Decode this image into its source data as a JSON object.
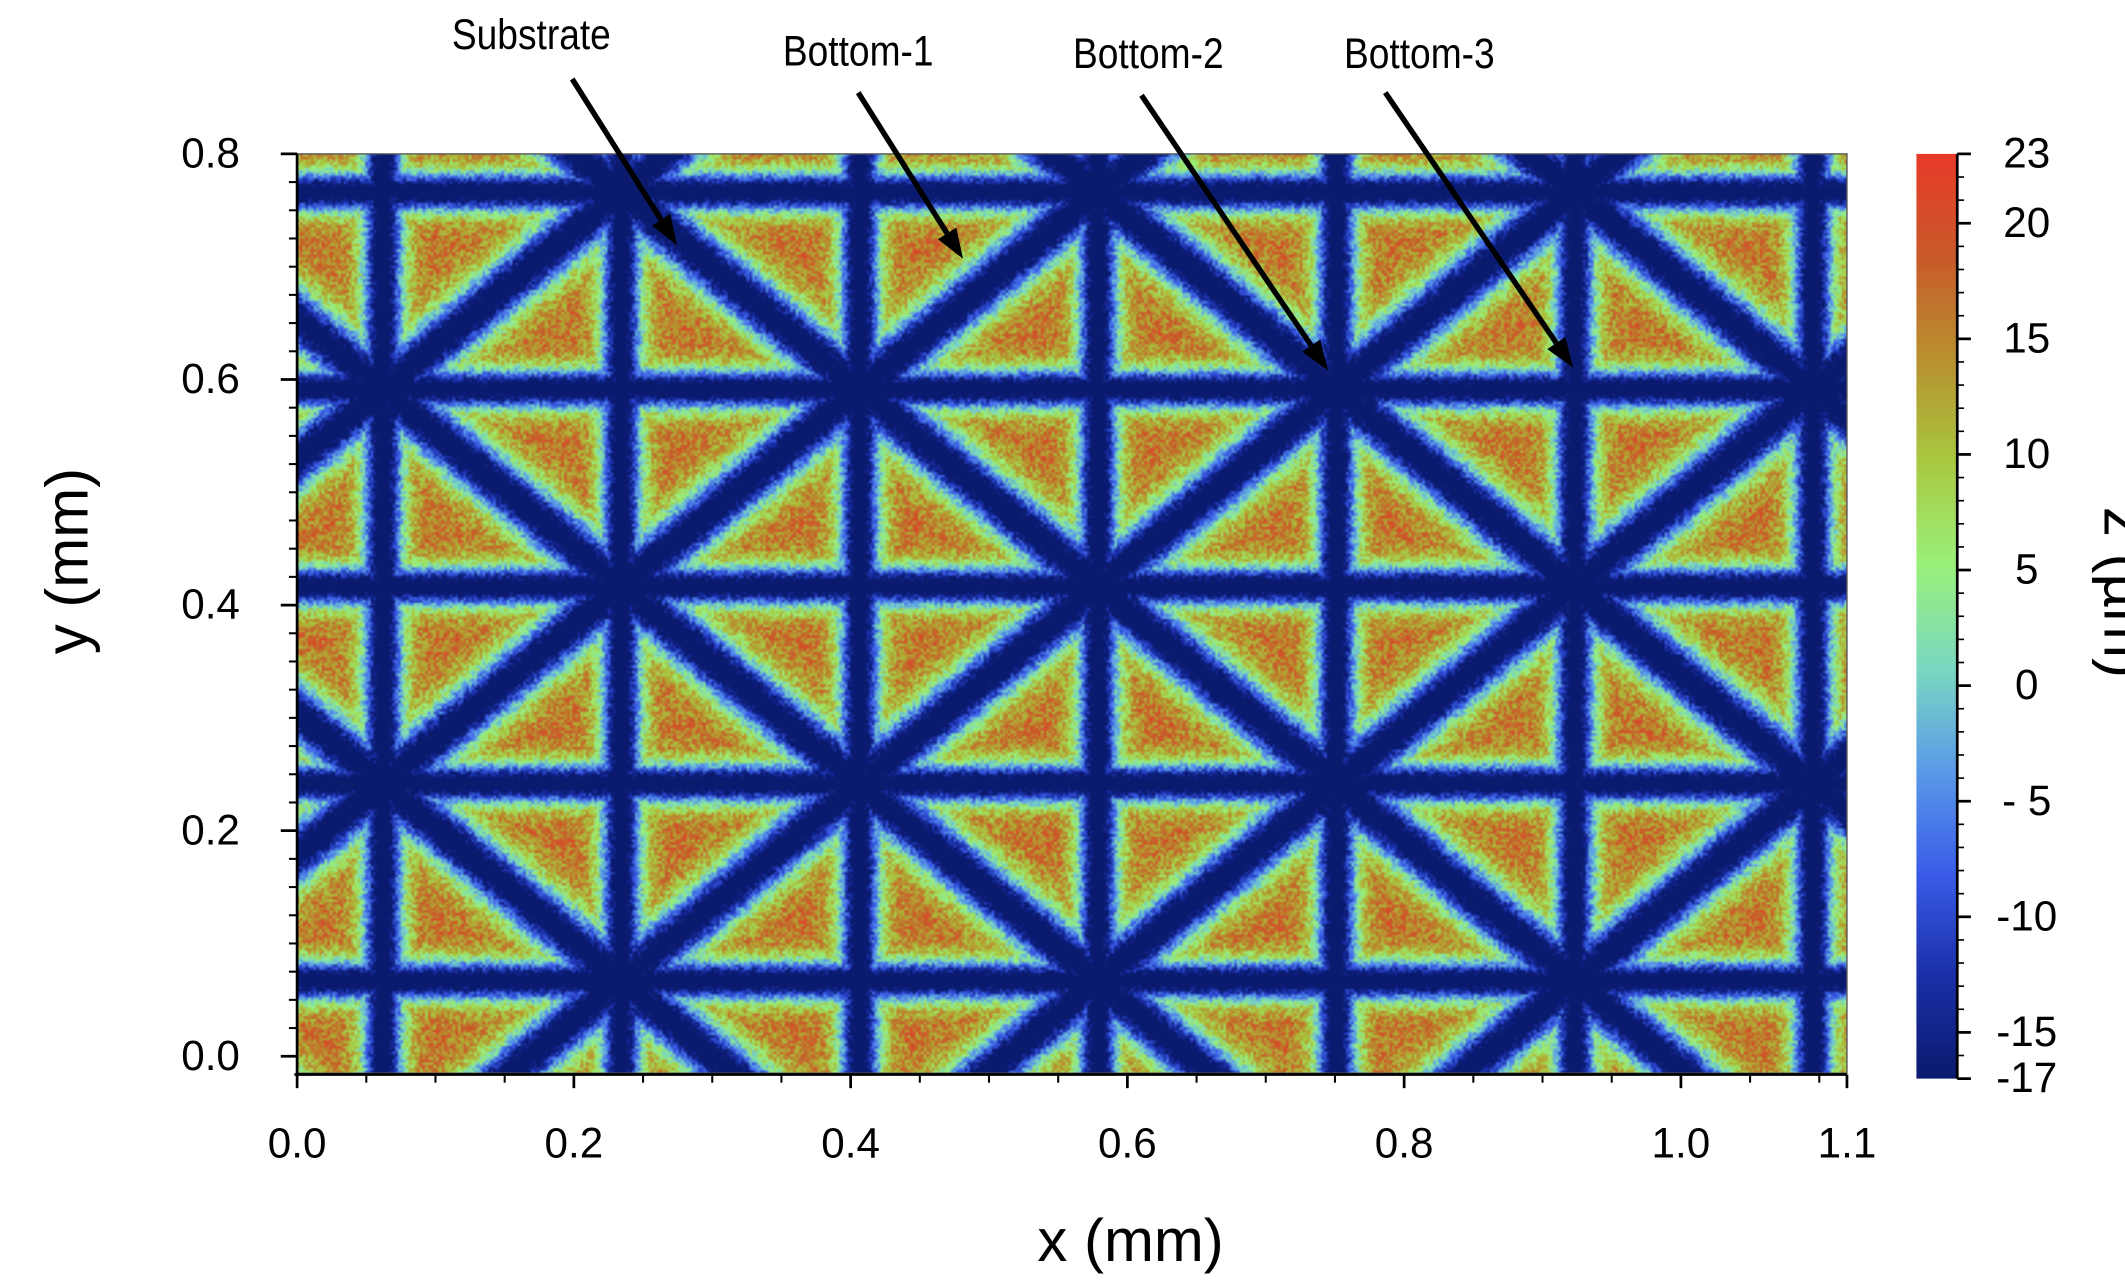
{
  "chart_data": {
    "type": "heatmap",
    "title": "",
    "xlabel": "x (mm)",
    "ylabel": "y (mm)",
    "colorbar_label": "z (µm)",
    "xlim": [
      0.0,
      1.12
    ],
    "ylim": [
      -0.015,
      0.8
    ],
    "x_ticks": [
      "0.0",
      "0.2",
      "0.4",
      "0.6",
      "0.8",
      "1.0",
      "1.1"
    ],
    "x_tick_values": [
      0.0,
      0.2,
      0.4,
      0.6,
      0.8,
      1.0,
      1.12
    ],
    "y_ticks": [
      "0.0",
      "0.2",
      "0.4",
      "0.6",
      "0.8"
    ],
    "y_tick_values": [
      0.0,
      0.2,
      0.4,
      0.6,
      0.8
    ],
    "colorbar": {
      "range": [
        -17,
        23
      ],
      "ticks": [
        "23",
        "20",
        "15",
        "10",
        "5",
        "0",
        "- 5",
        "-10",
        "-15",
        "-17"
      ],
      "tick_values": [
        23,
        20,
        15,
        10,
        5,
        0,
        -5,
        -10,
        -15,
        -17
      ],
      "colormap": [
        "#0a1a6e",
        "#1a2fa8",
        "#3a5ce8",
        "#5a9ae8",
        "#7ad8c0",
        "#9af07a",
        "#a8c840",
        "#b8902e",
        "#c85a2a",
        "#e83a28"
      ]
    },
    "grid": false,
    "annotations": [
      {
        "text": "Substrate"
      },
      {
        "text": "Bottom-1"
      },
      {
        "text": "Bottom-2"
      },
      {
        "text": "Bottom-3"
      }
    ]
  }
}
